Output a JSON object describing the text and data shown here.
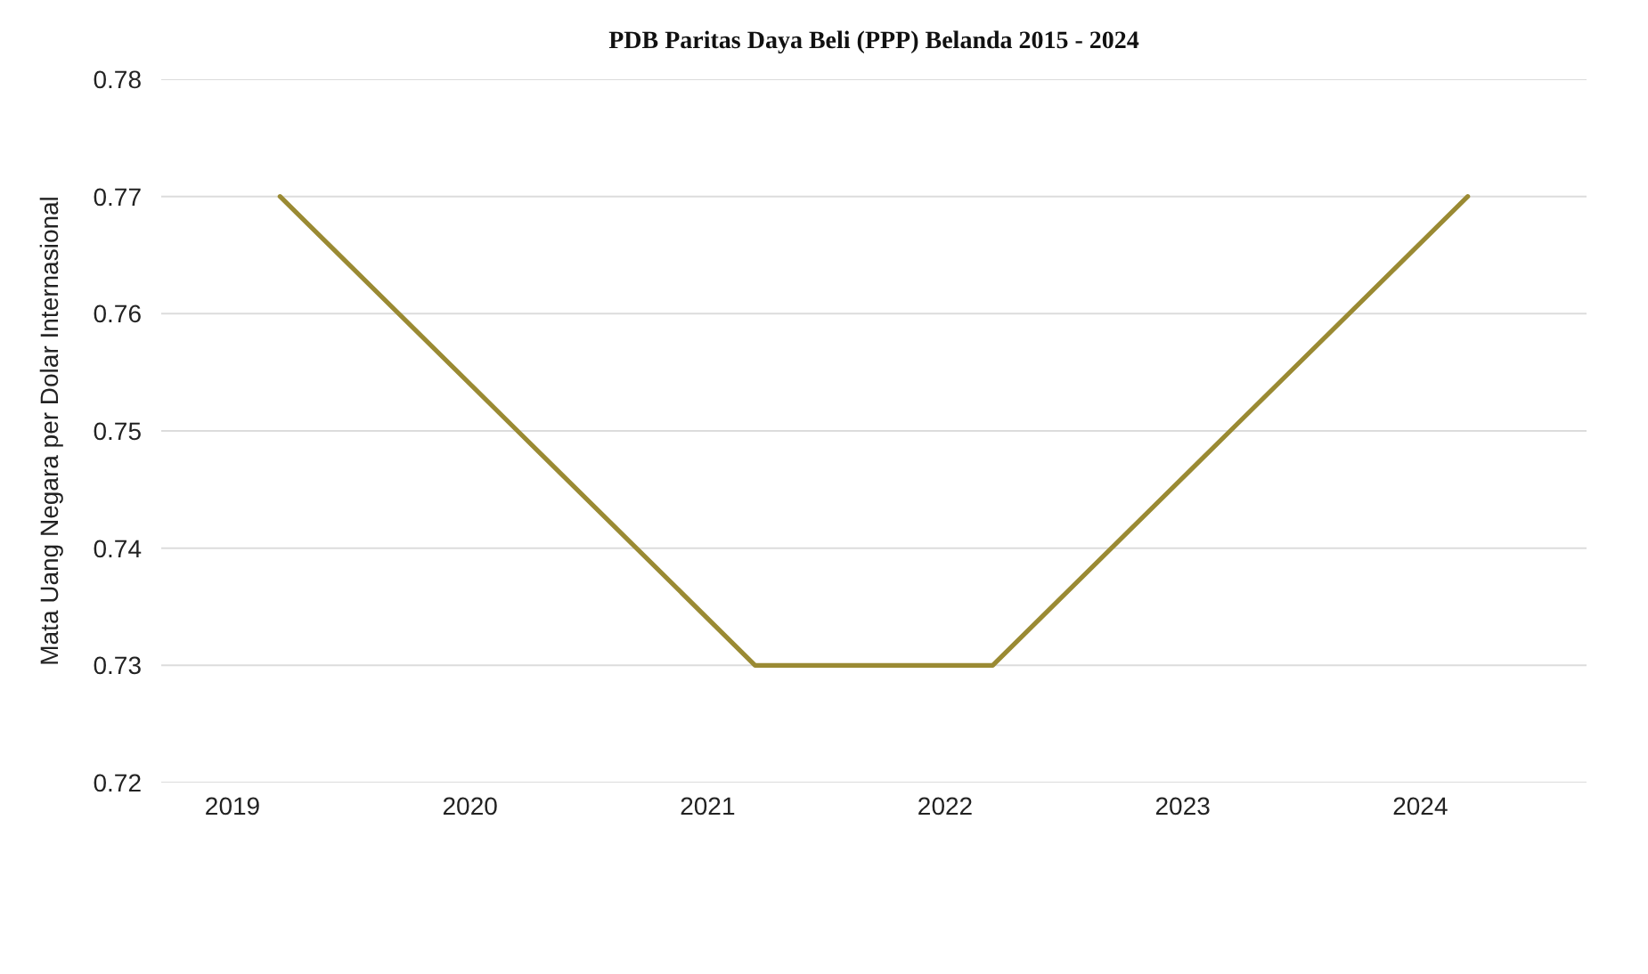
{
  "chart_data": {
    "type": "line",
    "title": "PDB Paritas Daya Beli (PPP) Belanda 2015 - 2024",
    "ylabel": "Mata Uang Negara per Dolar Internasional",
    "x": [
      2019.2,
      2020.2,
      2021.2,
      2022.2,
      2023.2,
      2024.2
    ],
    "values": [
      0.77,
      0.75,
      0.73,
      0.73,
      0.75,
      0.77
    ],
    "color": "#9a8a33",
    "xlim": [
      2018.7,
      2024.7
    ],
    "xticks": [
      2019,
      2020,
      2021,
      2022,
      2023,
      2024
    ],
    "ylim": [
      0.72,
      0.78
    ],
    "yticks": [
      0.72,
      0.73,
      0.74,
      0.75,
      0.76,
      0.77,
      0.78
    ],
    "grid": "y"
  }
}
